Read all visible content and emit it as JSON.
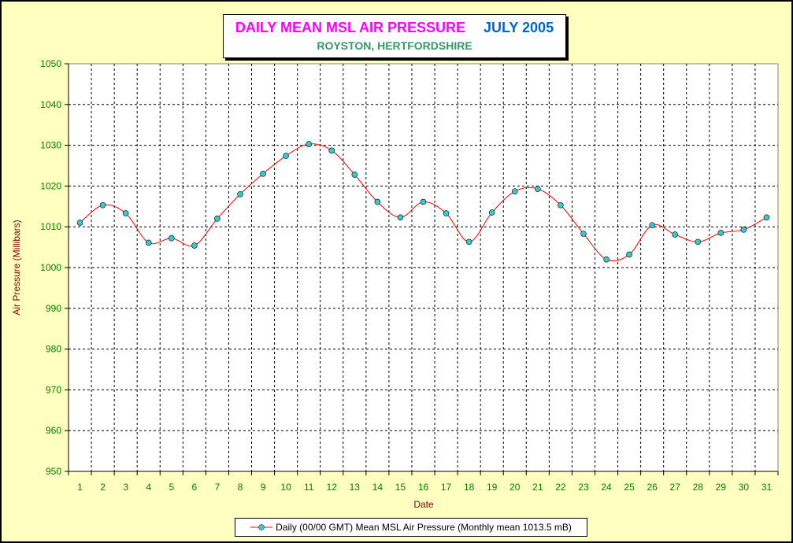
{
  "chart_data": {
    "type": "line",
    "title": "DAILY MEAN MSL AIR PRESSURE",
    "title_date": "JULY 2005",
    "subtitle": "ROYSTON, HERTFORDSHIRE",
    "xlabel": "Date",
    "ylabel": "Air Pressure (Millibars)",
    "ylim": [
      950,
      1050
    ],
    "y_ticks": [
      950,
      960,
      970,
      980,
      990,
      1000,
      1010,
      1020,
      1030,
      1040,
      1050
    ],
    "x": [
      1,
      2,
      3,
      4,
      5,
      6,
      7,
      8,
      9,
      10,
      11,
      12,
      13,
      14,
      15,
      16,
      17,
      18,
      19,
      20,
      21,
      22,
      23,
      24,
      25,
      26,
      27,
      28,
      29,
      30,
      31
    ],
    "series": [
      {
        "name": "Daily (00/00 GMT) Mean MSL Air Pressure (Monthly mean 1013.5 mB)",
        "values": [
          1011.0,
          1015.3,
          1013.3,
          1006.1,
          1007.2,
          1005.4,
          1012.0,
          1018.0,
          1023.0,
          1027.4,
          1030.3,
          1028.7,
          1022.8,
          1016.1,
          1012.3,
          1016.1,
          1013.3,
          1006.3,
          1013.5,
          1018.7,
          1019.3,
          1015.3,
          1008.3,
          1002.0,
          1003.2,
          1010.4,
          1008.1,
          1006.3,
          1008.5,
          1009.3,
          1012.3
        ]
      }
    ],
    "grid": true,
    "legend_position": "bottom",
    "colors": {
      "line": "#ff0000",
      "marker": "#33cccc",
      "axis_text": "#008000",
      "axis_label": "#800000",
      "background": "#ffffc0",
      "plot_background": "#ffffff"
    }
  }
}
